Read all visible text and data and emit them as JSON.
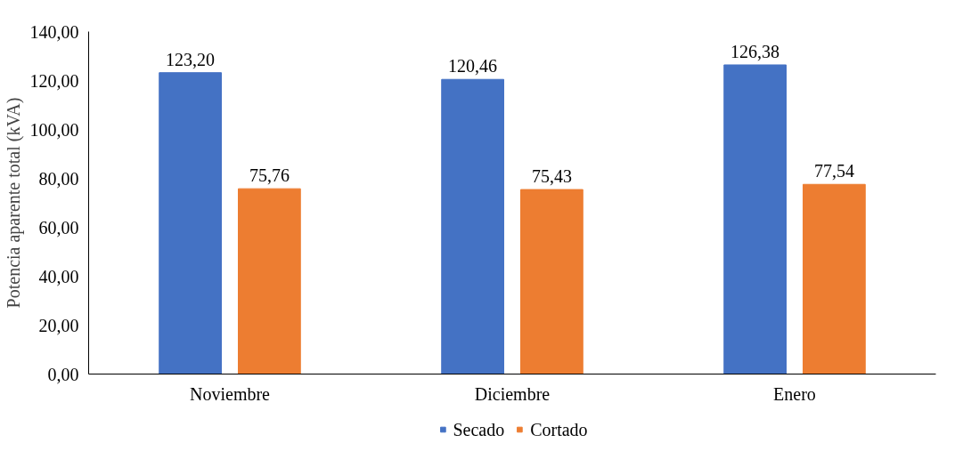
{
  "chart_data": {
    "type": "bar",
    "ylabel": "Potencia aparente total (kVA)",
    "categories": [
      "Noviembre",
      "Diciembre",
      "Enero"
    ],
    "series": [
      {
        "name": "Secado",
        "color": "#4472c4",
        "values": [
          123.2,
          120.46,
          126.38
        ],
        "value_labels": [
          "123,20",
          "120,46",
          "126,38"
        ]
      },
      {
        "name": "Cortado",
        "color": "#ed7d31",
        "values": [
          75.76,
          75.43,
          77.54
        ],
        "value_labels": [
          "75,76",
          "75,43",
          "77,54"
        ]
      }
    ],
    "ylim": [
      0,
      140
    ],
    "yticks": [
      {
        "value": 0,
        "label": "0,00"
      },
      {
        "value": 20,
        "label": "20,00"
      },
      {
        "value": 40,
        "label": "40,00"
      },
      {
        "value": 60,
        "label": "60,00"
      },
      {
        "value": 80,
        "label": "80,00"
      },
      {
        "value": 100,
        "label": "100,00"
      },
      {
        "value": 120,
        "label": "120,00"
      },
      {
        "value": 140,
        "label": "140,00"
      }
    ],
    "grid": false,
    "legend": "bottom"
  }
}
